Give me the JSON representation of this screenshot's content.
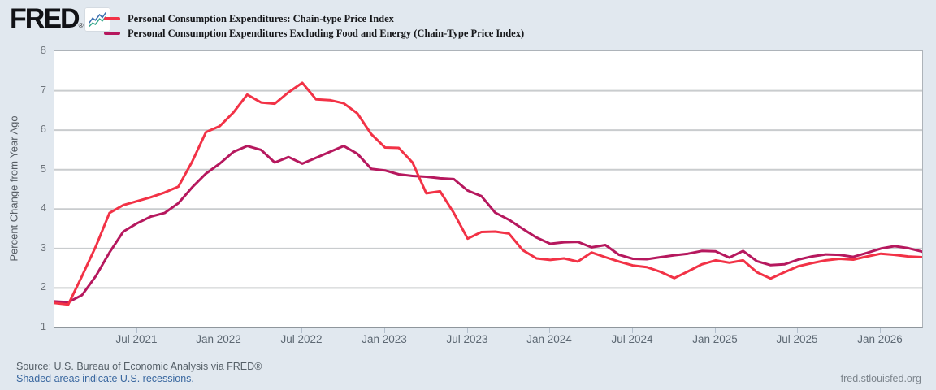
{
  "header": {
    "logo_text": "FRED",
    "logo_mark": "®",
    "logo_icon": "fred-sparkline-icon"
  },
  "footer": {
    "source_line": "Source: U.S. Bureau of Economic Analysis via FRED®",
    "recession_note": "Shaded areas indicate U.S. recessions.",
    "site_link": "fred.stlouisfed.org"
  },
  "colors": {
    "background": "#e1e8ef",
    "plot_background": "#ffffff",
    "grid": "#c9ccce",
    "series1": "#f23246",
    "series2": "#b6185e",
    "link_blue": "#3a68a0",
    "axis_text": "#6e747b"
  },
  "chart_data": {
    "type": "line",
    "title": "",
    "ylabel": "Percent Change from Year Ago",
    "xlabel": "",
    "ylim": [
      1,
      8
    ],
    "yticks": [
      1,
      2,
      3,
      4,
      5,
      6,
      7,
      8
    ],
    "grid": "horizontal-only",
    "legend_position": "top-left",
    "x_unit": "monthly",
    "x_start": "2021-01",
    "x_end": "2026-04",
    "x_ticks": [
      {
        "label": "Jul 2021",
        "month_index": 6
      },
      {
        "label": "Jan 2022",
        "month_index": 12
      },
      {
        "label": "Jul 2022",
        "month_index": 18
      },
      {
        "label": "Jan 2023",
        "month_index": 24
      },
      {
        "label": "Jul 2023",
        "month_index": 30
      },
      {
        "label": "Jan 2024",
        "month_index": 36
      },
      {
        "label": "Jul 2024",
        "month_index": 42
      },
      {
        "label": "Jan 2025",
        "month_index": 48
      },
      {
        "label": "Jul 2025",
        "month_index": 54
      },
      {
        "label": "Jan 2026",
        "month_index": 60
      }
    ],
    "series": [
      {
        "name": "Personal Consumption Expenditures: Chain-type Price Index",
        "color": "#f23246",
        "line_width": 3,
        "values": [
          1.62,
          1.58,
          2.3,
          3.05,
          3.9,
          4.1,
          4.2,
          4.3,
          4.42,
          4.57,
          5.2,
          5.95,
          6.1,
          6.45,
          6.9,
          6.7,
          6.67,
          6.96,
          7.2,
          6.78,
          6.76,
          6.68,
          6.42,
          5.9,
          5.56,
          5.55,
          5.18,
          4.4,
          4.45,
          3.9,
          3.25,
          3.42,
          3.43,
          3.38,
          2.96,
          2.75,
          2.71,
          2.75,
          2.67,
          2.9,
          2.78,
          2.67,
          2.57,
          2.53,
          2.41,
          2.25,
          2.42,
          2.6,
          2.7,
          2.64,
          2.7,
          2.4,
          2.24,
          2.4,
          2.55,
          2.63,
          2.7,
          2.74,
          2.72,
          2.8,
          2.87,
          2.84,
          2.8,
          2.78
        ]
      },
      {
        "name": "Personal Consumption Expenditures Excluding Food and Energy (Chain-Type Price Index)",
        "color": "#b6185e",
        "line_width": 3,
        "values": [
          1.66,
          1.64,
          1.82,
          2.3,
          2.9,
          3.43,
          3.64,
          3.81,
          3.9,
          4.15,
          4.55,
          4.9,
          5.15,
          5.45,
          5.6,
          5.5,
          5.18,
          5.32,
          5.15,
          5.3,
          5.45,
          5.6,
          5.4,
          5.02,
          4.98,
          4.88,
          4.84,
          4.82,
          4.78,
          4.76,
          4.47,
          4.33,
          3.91,
          3.73,
          3.5,
          3.28,
          3.12,
          3.16,
          3.17,
          3.03,
          3.09,
          2.84,
          2.74,
          2.73,
          2.78,
          2.83,
          2.87,
          2.94,
          2.93,
          2.77,
          2.94,
          2.68,
          2.58,
          2.6,
          2.72,
          2.8,
          2.85,
          2.84,
          2.79,
          2.89,
          3.0,
          3.06,
          3.01,
          2.92
        ]
      }
    ]
  }
}
